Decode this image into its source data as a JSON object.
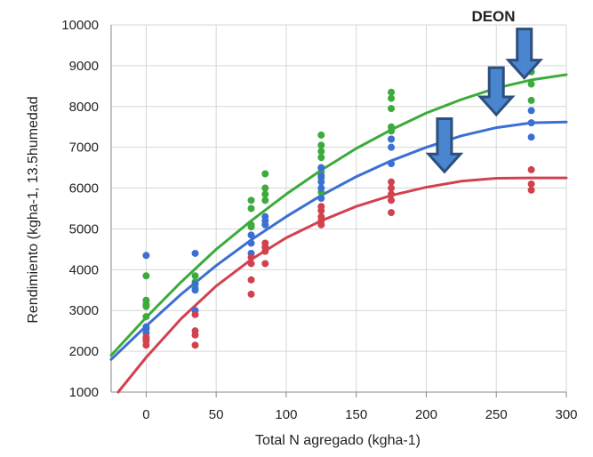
{
  "chart_data": {
    "type": "scatter",
    "title": "",
    "xlabel": "Total N agregado (kgha-1)",
    "ylabel": "Rendimiento (kgha-1, 13.5humedad",
    "xlim": [
      -25,
      300
    ],
    "ylim": [
      1000,
      10000
    ],
    "xticks": [
      0,
      50,
      100,
      150,
      200,
      250,
      300
    ],
    "xtick_labels": [
      "0",
      "50",
      "100",
      "150",
      "200",
      "250",
      "300"
    ],
    "yticks": [
      1000,
      2000,
      3000,
      4000,
      5000,
      6000,
      7000,
      8000,
      9000,
      10000
    ],
    "ytick_labels": [
      "1000",
      "2000",
      "3000",
      "4000",
      "5000",
      "6000",
      "7000",
      "8000",
      "9000",
      "10000"
    ],
    "grid": true,
    "annotation": "DEON",
    "series": [
      {
        "color": "#3cab3c",
        "points": [
          [
            0,
            2850
          ],
          [
            0,
            3100
          ],
          [
            0,
            3150
          ],
          [
            0,
            3250
          ],
          [
            0,
            3850
          ],
          [
            35,
            3550
          ],
          [
            35,
            3700
          ],
          [
            35,
            3850
          ],
          [
            75,
            5050
          ],
          [
            75,
            5100
          ],
          [
            75,
            5500
          ],
          [
            75,
            5700
          ],
          [
            85,
            5700
          ],
          [
            85,
            5850
          ],
          [
            85,
            6000
          ],
          [
            85,
            6350
          ],
          [
            125,
            5900
          ],
          [
            125,
            6250
          ],
          [
            125,
            6400
          ],
          [
            125,
            6500
          ],
          [
            125,
            6750
          ],
          [
            125,
            6900
          ],
          [
            125,
            7050
          ],
          [
            125,
            7300
          ],
          [
            175,
            7200
          ],
          [
            175,
            7400
          ],
          [
            175,
            7500
          ],
          [
            175,
            7950
          ],
          [
            175,
            8200
          ],
          [
            175,
            8350
          ],
          [
            275,
            8150
          ],
          [
            275,
            8550
          ],
          [
            275,
            8850
          ],
          [
            275,
            9050
          ]
        ],
        "curve": [
          [
            -25,
            1900
          ],
          [
            0,
            2830
          ],
          [
            25,
            3700
          ],
          [
            50,
            4500
          ],
          [
            75,
            5200
          ],
          [
            100,
            5850
          ],
          [
            125,
            6440
          ],
          [
            150,
            6970
          ],
          [
            175,
            7430
          ],
          [
            200,
            7840
          ],
          [
            225,
            8170
          ],
          [
            250,
            8450
          ],
          [
            275,
            8650
          ],
          [
            300,
            8780
          ]
        ]
      },
      {
        "color": "#3b6fd4",
        "points": [
          [
            0,
            2450
          ],
          [
            0,
            2550
          ],
          [
            0,
            2600
          ],
          [
            0,
            4350
          ],
          [
            35,
            3000
          ],
          [
            35,
            3500
          ],
          [
            35,
            3650
          ],
          [
            35,
            4400
          ],
          [
            75,
            4400
          ],
          [
            75,
            4650
          ],
          [
            75,
            4850
          ],
          [
            85,
            4550
          ],
          [
            85,
            5100
          ],
          [
            85,
            5200
          ],
          [
            85,
            5300
          ],
          [
            125,
            5750
          ],
          [
            125,
            6000
          ],
          [
            125,
            6150
          ],
          [
            125,
            6300
          ],
          [
            125,
            6500
          ],
          [
            175,
            6600
          ],
          [
            175,
            7000
          ],
          [
            175,
            7200
          ],
          [
            275,
            7250
          ],
          [
            275,
            7600
          ],
          [
            275,
            7900
          ]
        ],
        "curve": [
          [
            -25,
            1800
          ],
          [
            0,
            2620
          ],
          [
            25,
            3400
          ],
          [
            50,
            4100
          ],
          [
            75,
            4730
          ],
          [
            100,
            5300
          ],
          [
            125,
            5820
          ],
          [
            150,
            6280
          ],
          [
            175,
            6670
          ],
          [
            200,
            7000
          ],
          [
            225,
            7280
          ],
          [
            250,
            7480
          ],
          [
            275,
            7600
          ],
          [
            300,
            7620
          ]
        ]
      },
      {
        "color": "#d2424e",
        "points": [
          [
            0,
            2150
          ],
          [
            0,
            2250
          ],
          [
            0,
            2300
          ],
          [
            0,
            2350
          ],
          [
            35,
            2150
          ],
          [
            35,
            2400
          ],
          [
            35,
            2500
          ],
          [
            35,
            2900
          ],
          [
            75,
            3400
          ],
          [
            75,
            3750
          ],
          [
            75,
            4150
          ],
          [
            75,
            4300
          ],
          [
            85,
            4150
          ],
          [
            85,
            4450
          ],
          [
            85,
            4550
          ],
          [
            85,
            4650
          ],
          [
            125,
            5100
          ],
          [
            125,
            5200
          ],
          [
            125,
            5300
          ],
          [
            125,
            5450
          ],
          [
            125,
            5550
          ],
          [
            175,
            5400
          ],
          [
            175,
            5700
          ],
          [
            175,
            5850
          ],
          [
            175,
            6000
          ],
          [
            175,
            6150
          ],
          [
            275,
            5950
          ],
          [
            275,
            6100
          ],
          [
            275,
            6450
          ]
        ],
        "curve": [
          [
            -20,
            1000
          ],
          [
            0,
            1850
          ],
          [
            25,
            2800
          ],
          [
            50,
            3600
          ],
          [
            75,
            4250
          ],
          [
            100,
            4780
          ],
          [
            125,
            5200
          ],
          [
            150,
            5550
          ],
          [
            175,
            5820
          ],
          [
            200,
            6020
          ],
          [
            225,
            6170
          ],
          [
            250,
            6240
          ],
          [
            275,
            6250
          ],
          [
            300,
            6250
          ]
        ]
      }
    ],
    "arrows": [
      {
        "x": 270,
        "y_tip": 8700,
        "y_tail": 9900
      },
      {
        "x": 250,
        "y_tip": 7800,
        "y_tail": 8950
      },
      {
        "x": 213,
        "y_tip": 6400,
        "y_tail": 7700
      }
    ]
  }
}
